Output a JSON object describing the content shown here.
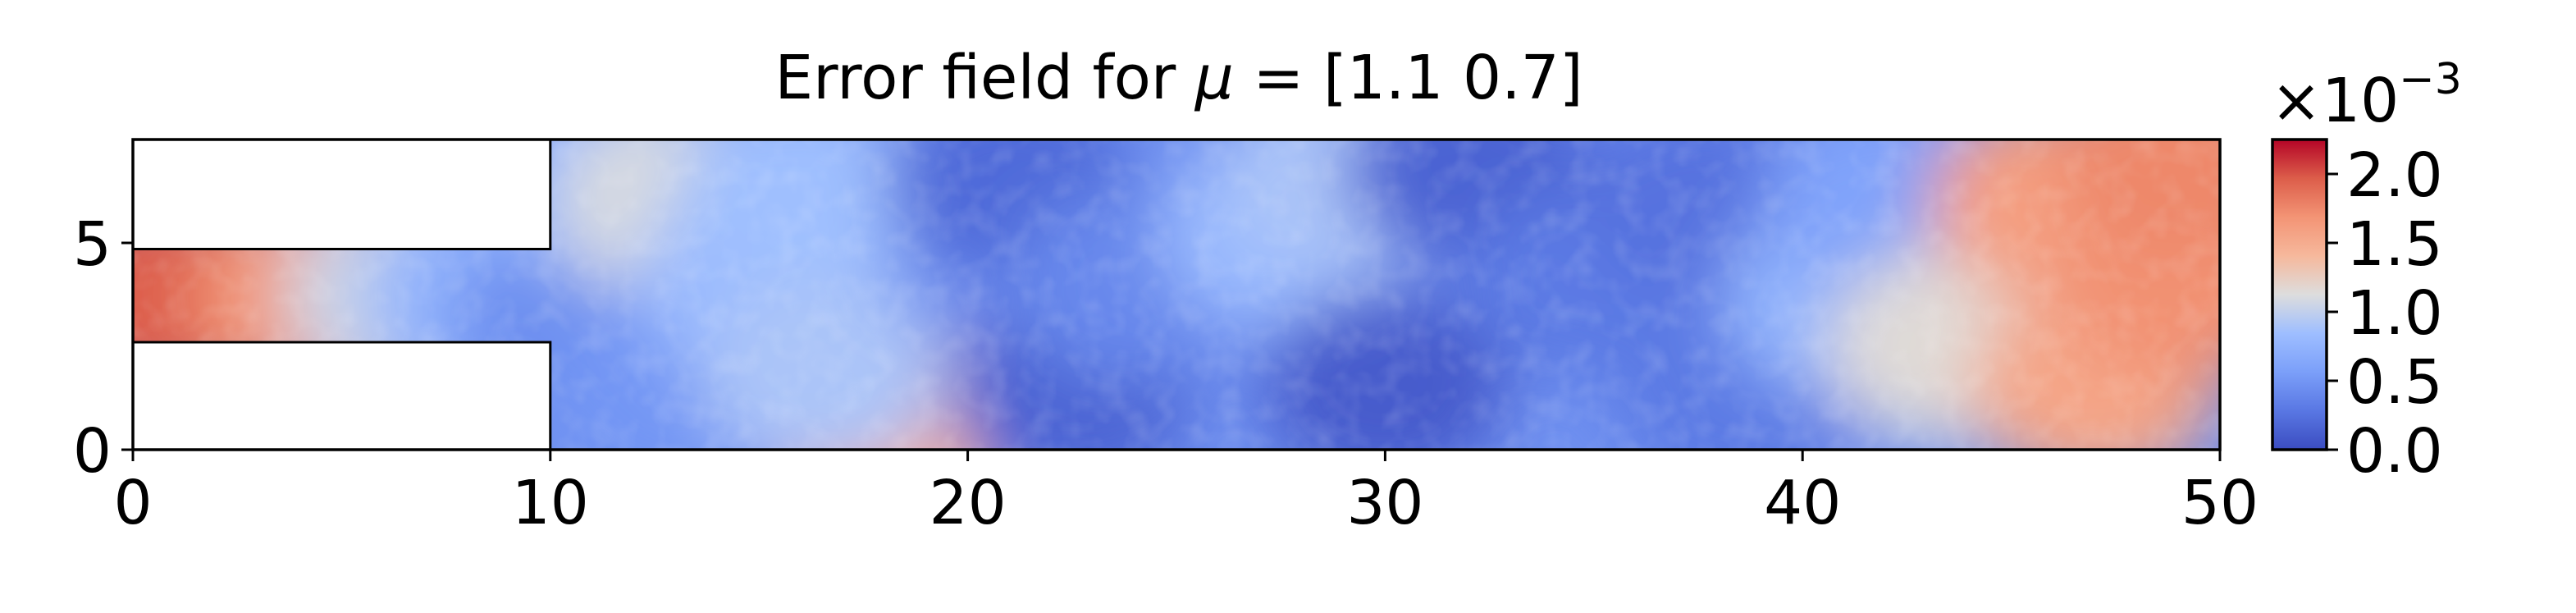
{
  "chart_data": {
    "type": "heatmap",
    "title": {
      "prefix": "Error field for ",
      "symbol": "μ",
      "suffix": " = [1.1 0.7]"
    },
    "xlabel": "",
    "ylabel": "",
    "xlim": [
      0,
      50
    ],
    "ylim": [
      0,
      7.5
    ],
    "x_ticks": [
      0,
      10,
      20,
      30,
      40,
      50
    ],
    "y_ticks": [
      0,
      5
    ],
    "domain": {
      "inlet_x": [
        0,
        10
      ],
      "inlet_y": [
        2.6,
        4.85
      ],
      "channel_x": [
        10,
        50
      ],
      "channel_y": [
        0,
        7.5
      ]
    },
    "colormap": "coolwarm",
    "color_range": [
      0.0,
      0.00225
    ],
    "colorbar": {
      "multiplier": "×10",
      "exponent": "−3",
      "tick_values": [
        0.0,
        0.5,
        1.0,
        1.5,
        2.0
      ],
      "tick_labels": [
        "0.0",
        "0.5",
        "1.0",
        "1.5",
        "2.0"
      ]
    },
    "field_samples": [
      {
        "x": 0.5,
        "y": 3.7,
        "value": 2.0
      },
      {
        "x": 2,
        "y": 3.7,
        "value": 1.95
      },
      {
        "x": 4.5,
        "y": 3.7,
        "value": 1.65
      },
      {
        "x": 6.5,
        "y": 3.7,
        "value": 1.05
      },
      {
        "x": 8.5,
        "y": 3.7,
        "value": 0.75
      },
      {
        "x": 10.5,
        "y": 3.2,
        "value": 0.45
      },
      {
        "x": 11.5,
        "y": 6.5,
        "value": 0.75
      },
      {
        "x": 13,
        "y": 6,
        "value": 1.1
      },
      {
        "x": 13,
        "y": 1.3,
        "value": 0.5
      },
      {
        "x": 15,
        "y": 4,
        "value": 0.8
      },
      {
        "x": 16,
        "y": 6.2,
        "value": 0.85
      },
      {
        "x": 18,
        "y": 0.6,
        "value": 1.5
      },
      {
        "x": 16.5,
        "y": 1.8,
        "value": 0.9
      },
      {
        "x": 21,
        "y": 6.5,
        "value": 0.2
      },
      {
        "x": 22.5,
        "y": 1.4,
        "value": 0.15
      },
      {
        "x": 24,
        "y": 4,
        "value": 0.4
      },
      {
        "x": 27.5,
        "y": 5.2,
        "value": 0.8
      },
      {
        "x": 29,
        "y": 6.6,
        "value": 0.9
      },
      {
        "x": 32,
        "y": 6.8,
        "value": 0.15
      },
      {
        "x": 30,
        "y": 1.5,
        "value": 0.1
      },
      {
        "x": 35,
        "y": 4,
        "value": 0.3
      },
      {
        "x": 37.5,
        "y": 6,
        "value": 0.25
      },
      {
        "x": 38.5,
        "y": 1.2,
        "value": 0.3
      },
      {
        "x": 41,
        "y": 3.6,
        "value": 0.75
      },
      {
        "x": 42,
        "y": 6,
        "value": 0.6
      },
      {
        "x": 43.5,
        "y": 2.5,
        "value": 1.15
      },
      {
        "x": 46,
        "y": 6,
        "value": 1.6
      },
      {
        "x": 47,
        "y": 1.5,
        "value": 1.55
      },
      {
        "x": 49,
        "y": 4,
        "value": 1.7
      },
      {
        "x": 49,
        "y": 7,
        "value": 1.75
      }
    ]
  }
}
